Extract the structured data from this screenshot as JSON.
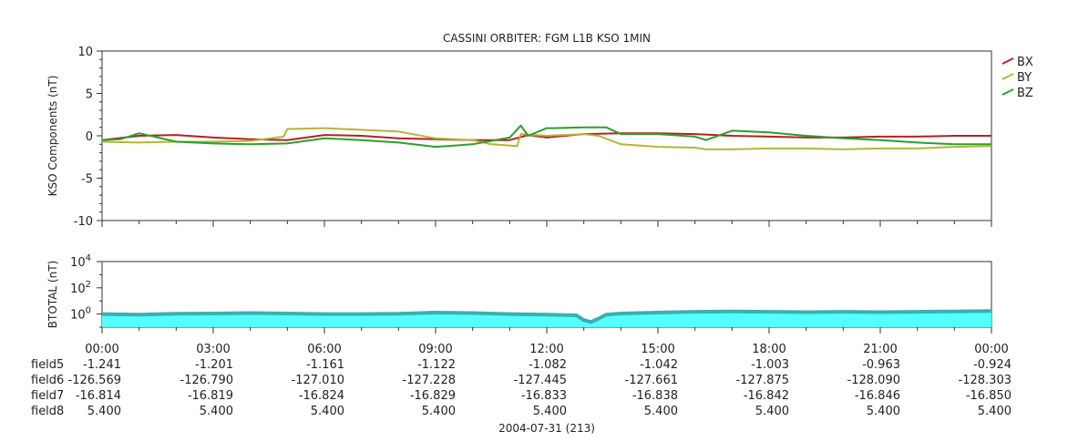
{
  "title": "CASSINI ORBITER: FGM L1B KSO 1MIN",
  "x_axis": {
    "tick_labels": [
      "00:00",
      "03:00",
      "06:00",
      "09:00",
      "12:00",
      "15:00",
      "18:00",
      "21:00",
      "00:00"
    ],
    "date_label": "2004-07-31 (213)"
  },
  "ephemeris": [
    {
      "name": "field5",
      "values": [
        "-1.241",
        "-1.201",
        "-1.161",
        "-1.122",
        "-1.082",
        "-1.042",
        "-1.003",
        "-0.963",
        "-0.924"
      ]
    },
    {
      "name": "field6",
      "values": [
        "-126.569",
        "-126.790",
        "-127.010",
        "-127.228",
        "-127.445",
        "-127.661",
        "-127.875",
        "-128.090",
        "-128.303"
      ]
    },
    {
      "name": "field7",
      "values": [
        "-16.814",
        "-16.819",
        "-16.824",
        "-16.829",
        "-16.833",
        "-16.838",
        "-16.842",
        "-16.846",
        "-16.850"
      ]
    },
    {
      "name": "field8",
      "values": [
        "5.400",
        "5.400",
        "5.400",
        "5.400",
        "5.400",
        "5.400",
        "5.400",
        "5.400",
        "5.400"
      ]
    }
  ],
  "chart_data": [
    {
      "type": "line",
      "title": "CASSINI ORBITER: FGM L1B KSO 1MIN",
      "ylabel": "KSO Components (nT)",
      "ylim": [
        -10,
        10
      ],
      "yticks": [
        "10",
        "5",
        "0",
        "-5",
        "-10"
      ],
      "xlim": [
        0,
        24
      ],
      "x_unit": "hours",
      "legend_position": "right",
      "series": [
        {
          "name": "BX",
          "color": "#b22222",
          "x": [
            0,
            1,
            2,
            3,
            4,
            5,
            6,
            7,
            8,
            9,
            10,
            11,
            11.5,
            12,
            13,
            14,
            15,
            16,
            17,
            18,
            19,
            20,
            21,
            22,
            23,
            24
          ],
          "y": [
            -0.5,
            0.0,
            0.1,
            -0.2,
            -0.4,
            -0.5,
            0.1,
            0.0,
            -0.3,
            -0.4,
            -0.5,
            -0.5,
            0.1,
            -0.2,
            0.2,
            0.3,
            0.3,
            0.2,
            0.0,
            -0.1,
            -0.2,
            -0.2,
            -0.1,
            -0.1,
            0.0,
            0.0
          ]
        },
        {
          "name": "BY",
          "color": "#b5b536",
          "x": [
            0,
            1,
            2,
            3,
            4,
            4.9,
            5.0,
            6,
            7,
            8,
            9,
            10,
            10.5,
            11.2,
            11.3,
            12,
            13,
            13.4,
            14,
            15,
            16,
            16.3,
            17,
            18,
            19,
            20,
            21,
            22,
            23,
            24
          ],
          "y": [
            -0.7,
            -0.8,
            -0.7,
            -0.7,
            -0.6,
            -0.1,
            0.8,
            0.9,
            0.7,
            0.5,
            -0.3,
            -0.5,
            -1.0,
            -1.2,
            0.2,
            0.0,
            0.2,
            0.0,
            -1.0,
            -1.3,
            -1.4,
            -1.6,
            -1.6,
            -1.5,
            -1.5,
            -1.6,
            -1.5,
            -1.5,
            -1.3,
            -1.2
          ]
        },
        {
          "name": "BZ",
          "color": "#2aa02a",
          "x": [
            0,
            0.5,
            1,
            2,
            3,
            4,
            5,
            6,
            7,
            8,
            9,
            10,
            11,
            11.3,
            11.5,
            12,
            12.2,
            13,
            13.6,
            14,
            15,
            16,
            16.3,
            17,
            18,
            19,
            20,
            21,
            22,
            23,
            24
          ],
          "y": [
            -0.5,
            -0.4,
            0.3,
            -0.7,
            -0.9,
            -1.0,
            -0.9,
            -0.3,
            -0.5,
            -0.8,
            -1.3,
            -1.0,
            -0.2,
            1.2,
            0.0,
            0.9,
            0.9,
            1.0,
            1.0,
            0.2,
            0.2,
            -0.1,
            -0.5,
            0.6,
            0.4,
            0.0,
            -0.3,
            -0.5,
            -0.8,
            -1.0,
            -1.0
          ]
        }
      ]
    },
    {
      "type": "area",
      "ylabel": "BTOTAL (nT)",
      "yscale": "log",
      "ylim": [
        0.1,
        10000
      ],
      "yticks": [
        "10^0",
        "10^2",
        "10^4"
      ],
      "xlim": [
        0,
        24
      ],
      "x_unit": "hours",
      "fill_color": "#55ffff",
      "line_color": "#3ab0b0",
      "series": [
        {
          "name": "BTOTAL",
          "x": [
            0,
            1,
            2,
            3,
            4,
            5,
            6,
            7,
            8,
            9,
            10,
            11,
            12,
            12.8,
            13.0,
            13.2,
            13.4,
            13.6,
            14,
            15,
            16,
            17,
            18,
            19,
            20,
            21,
            22,
            23,
            24
          ],
          "y": [
            1.0,
            0.9,
            1.05,
            1.1,
            1.2,
            1.1,
            1.0,
            1.0,
            1.05,
            1.3,
            1.2,
            1.0,
            0.9,
            0.8,
            0.35,
            0.25,
            0.45,
            0.9,
            1.1,
            1.3,
            1.5,
            1.6,
            1.5,
            1.4,
            1.5,
            1.4,
            1.5,
            1.6,
            1.7
          ]
        }
      ]
    }
  ]
}
